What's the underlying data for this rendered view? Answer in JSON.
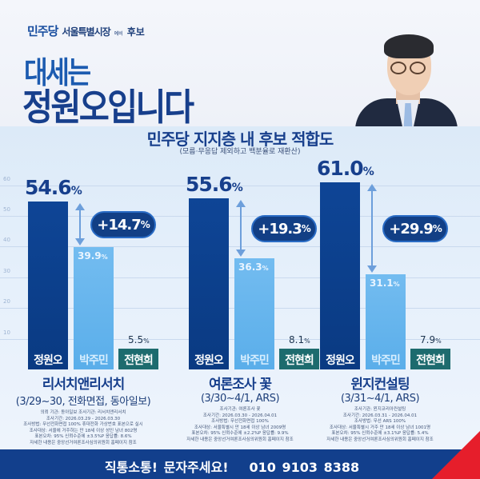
{
  "header": {
    "party": "민주당",
    "party_small": "더불어",
    "office": "서울특별시장",
    "office_small": "예비",
    "candidate_label": "후보",
    "headline_line1": "대세는",
    "headline_line2": "정원오입니다"
  },
  "chart_title": "민주당 지지층 내 후보 적합도",
  "chart_subtitle": "(모름·무응답 제외하고 백분율로 재환산)",
  "colors": {
    "jeong": "#0e4596",
    "park": "#6ab8ef",
    "jeon": "#1d6b6e",
    "title": "#173f8c",
    "footer": "#123f8c",
    "accent_red": "#e61e2b"
  },
  "candidates": [
    "정원오",
    "박주민",
    "전현희"
  ],
  "polls": [
    {
      "name": "리서치앤리서치",
      "detail": "(3/29~30, 전화면접, 동아일보)",
      "values": [
        "54.6",
        "39.9",
        "5.5"
      ],
      "gap": "+14.7",
      "fine": [
        "의뢰 기관: 동아일보 조사기관: 리서치앤리서치",
        "조사기간: 2026.03.29 - 2026.03.30",
        "조사방법: 무선전화면접 100% 휴대전화 가상번호 표본으로 실시",
        "조사대상: 서울에 거주하는 만 18세 이상 성인 남녀 802명",
        "표본오차: 95% 신뢰수준에 ±3.5%P 응답률: 8.6%",
        "자세한 내용은 중앙선거여론조사심의위원회 홈페이지 참조"
      ]
    },
    {
      "name": "여론조사 꽃",
      "detail": "(3/30~4/1, ARS)",
      "values": [
        "55.6",
        "36.3",
        "8.1"
      ],
      "gap": "+19.3",
      "fine": [
        "조사기관: 여론조사 꽃",
        "조사기간: 2026.03.30 - 2026.04.01",
        "조사방법: 무선전화면접 100%",
        "조사대상: 서울특별시 만 18세 이상 남녀 2009명",
        "표본오차: 95% 신뢰수준에 ±2.2%P 응답률: 9.9%",
        "자세한 내용은 중앙선거여론조사심의위원회 홈페이지 참조"
      ]
    },
    {
      "name": "윈지컨설팅",
      "detail": "(3/31~4/1, ARS)",
      "values": [
        "61.0",
        "31.1",
        "7.9"
      ],
      "gap": "+29.9",
      "fine": [
        "조사기관: 윈지코리아컨설팅",
        "조사기간: 2026.03.31 - 2026.04.01",
        "조사방법: 무선 ARS 100%",
        "조사대상: 서울특별시 거주 만 18세 이상 남녀 1001명",
        "표본오차: 95% 신뢰수준에 ±3.1%P 응답률: 5.4%",
        "자세한 내용은 중앙선거여론조사심의위원회 홈페이지 참조"
      ]
    }
  ],
  "footer": {
    "cta": "직통소통! 문자주세요!",
    "phone": "010 9103 8388"
  },
  "chart_data": {
    "type": "bar",
    "title": "민주당 지지층 내 후보 적합도",
    "subtitle": "(모름·무응답 제외하고 백분율로 재환산)",
    "categories": [
      "리서치앤리서치 (3/29~30, 전화면접, 동아일보)",
      "여론조사 꽃 (3/30~4/1, ARS)",
      "윈지컨설팅 (3/31~4/1, ARS)"
    ],
    "series": [
      {
        "name": "정원오",
        "values": [
          54.6,
          55.6,
          61.0
        ]
      },
      {
        "name": "박주민",
        "values": [
          39.9,
          36.3,
          31.1
        ]
      },
      {
        "name": "전현희",
        "values": [
          5.5,
          8.1,
          7.9
        ]
      }
    ],
    "annotations": [
      "+14.7%",
      "+19.3%",
      "+29.9%"
    ],
    "yticks": [
      10,
      20,
      30,
      40,
      50,
      60
    ],
    "ylim": [
      0,
      60
    ],
    "xlabel": "",
    "ylabel": "%",
    "grid": true,
    "legend": "names inside bars"
  }
}
